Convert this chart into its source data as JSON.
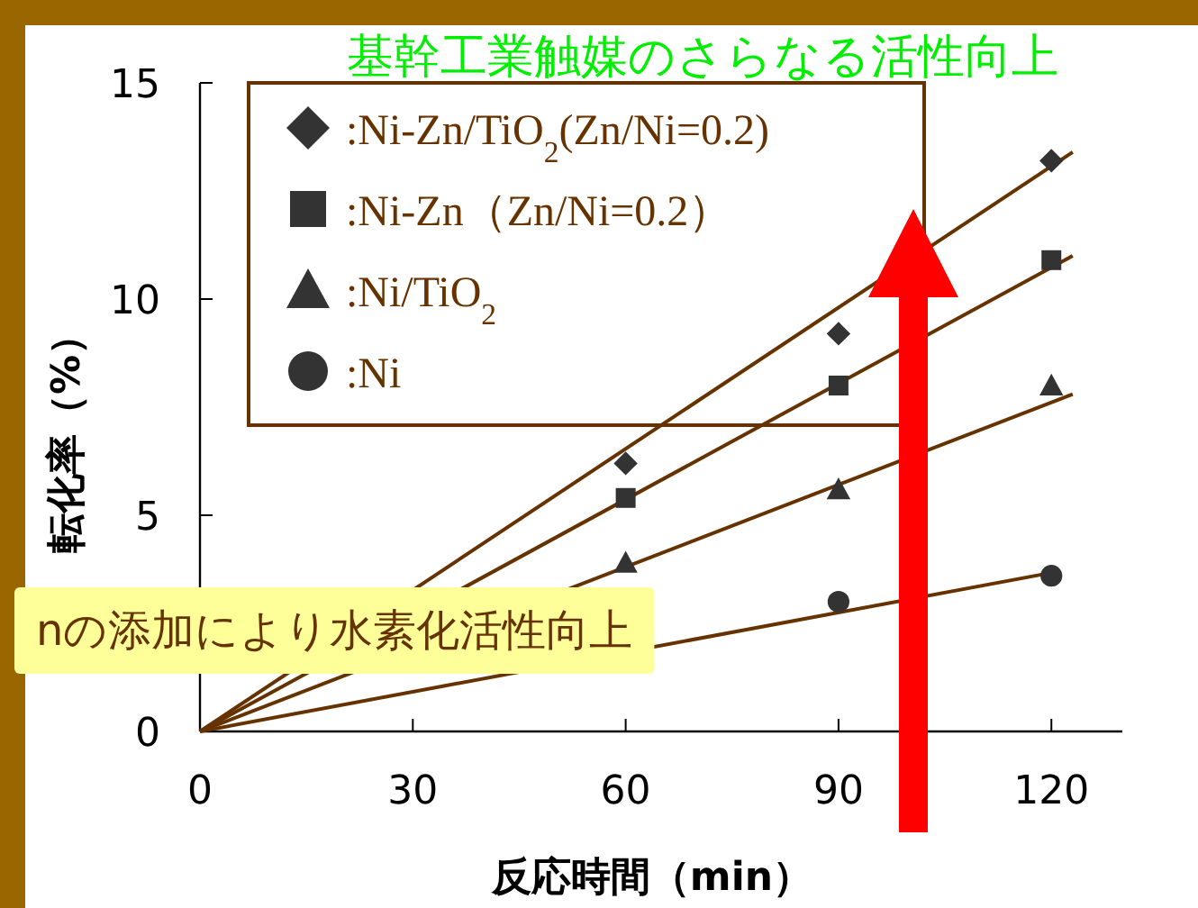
{
  "chart_data": {
    "type": "scatter",
    "title": "基幹工業触媒のさらなる活性向上",
    "xlabel": "反応時間（min）",
    "ylabel": "転化率（%）",
    "annotations": [
      "nの添加により水素化活性向上"
    ],
    "x": [
      60,
      90,
      120
    ],
    "series": [
      {
        "name": ":Ni-Zn/TiO$_{2}$(Zn/Ni=0.2)",
        "color": "#333333",
        "marker": "diamond",
        "values": [
          6.2,
          9.2,
          13.2
        ]
      },
      {
        "name": ":Ni-Zn（Zn/Ni=0.2）",
        "color": "#333333",
        "marker": "square",
        "values": [
          5.4,
          8.0,
          10.9
        ]
      },
      {
        "name": ":Ni/TiO$_{2}$",
        "color": "#333333",
        "marker": "triangle",
        "values": [
          3.9,
          5.6,
          8.0
        ]
      },
      {
        "name": ":Ni",
        "color": "#333333",
        "marker": "circle",
        "values": [
          null,
          3.0,
          3.6
        ]
      },
      {
        "type": "line",
        "color": "#663300",
        "x": [
          0,
          123
        ],
        "values": [
          0,
          13.4
        ]
      },
      {
        "type": "line",
        "color": "#663300",
        "x": [
          0,
          123
        ],
        "values": [
          0,
          11.0
        ]
      },
      {
        "type": "line",
        "color": "#663300",
        "x": [
          0,
          123
        ],
        "values": [
          0,
          7.8
        ]
      },
      {
        "type": "line",
        "color": "#663300",
        "x": [
          0,
          121
        ],
        "values": [
          0,
          3.7
        ]
      }
    ],
    "xlim": [
      0,
      130
    ],
    "ylim": [
      0,
      15
    ],
    "xticks": [
      0,
      30,
      60,
      90,
      120
    ],
    "yticks": [
      0,
      5,
      10,
      15
    ],
    "grid": false,
    "legend": "top left"
  }
}
